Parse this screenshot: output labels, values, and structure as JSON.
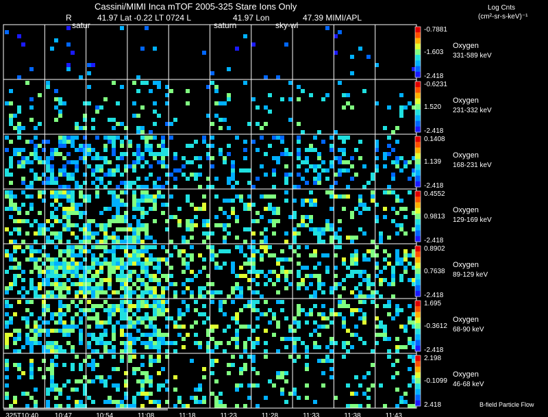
{
  "header": {
    "title": "Cassini/MIMI Inca mTOF  2005-325   Stare   Ions Only",
    "ephem_r_label": "R",
    "ephem_lat": "41.97 Lat -0.22 LT 0724 L",
    "ephem_lon": "41.97 Lon",
    "ephem_credit": "47.39  MIMI/APL",
    "target_1": "satur",
    "target_2": "saturn",
    "target_3": "sky-wl",
    "units_title": "Log Cnts",
    "units_sub": "(cm²-sr-s-keV)⁻¹"
  },
  "chart_data": {
    "type": "heatmap",
    "time_labels": [
      "325T10:40",
      "10:47",
      "10:54",
      "11:08",
      "11:18",
      "11:23",
      "11:28",
      "11:33",
      "11:38",
      "11:43"
    ],
    "footer_note": "B-field Particle Flow",
    "colormap": [
      "#1a1aff",
      "#0066ff",
      "#00b0ff",
      "#1fe0e0",
      "#80ff80",
      "#e0ff30",
      "#ffb000",
      "#ff5000",
      "#e00000"
    ],
    "rows": [
      {
        "species": "Oxygen",
        "energy": "331-589 keV",
        "scale_max": "-0.7881",
        "scale_mid": "-1.603",
        "scale_min": "-2.418",
        "density": 0.025,
        "level": 0.15
      },
      {
        "species": "Oxygen",
        "energy": "231-332 keV",
        "scale_max": "-0.6231",
        "scale_mid": "1.520",
        "scale_min": "-2.418",
        "density": 0.12,
        "level": 0.35
      },
      {
        "species": "Oxygen",
        "energy": "168-231 keV",
        "scale_max": "0.1408",
        "scale_mid": "1.139",
        "scale_min": "-2.418",
        "density": 0.3,
        "level": 0.3
      },
      {
        "species": "Oxygen",
        "energy": "129-169 keV",
        "scale_max": "0.4552",
        "scale_mid": "0.9813",
        "scale_min": "-2.418",
        "density": 0.32,
        "level": 0.4
      },
      {
        "species": "Oxygen",
        "energy": "89-129 keV",
        "scale_max": "0.8902",
        "scale_mid": "0.7638",
        "scale_min": "-2.418",
        "density": 0.42,
        "level": 0.42
      },
      {
        "species": "Oxygen",
        "energy": "68-90 keV",
        "scale_max": "1.695",
        "scale_mid": "-0.3612",
        "scale_min": "-2.418",
        "density": 0.32,
        "level": 0.4
      },
      {
        "species": "Oxygen",
        "energy": "46-68 keV",
        "scale_max": "2.198",
        "scale_mid": "-0.1099",
        "scale_min": "2.418",
        "density": 0.22,
        "level": 0.4
      }
    ]
  }
}
